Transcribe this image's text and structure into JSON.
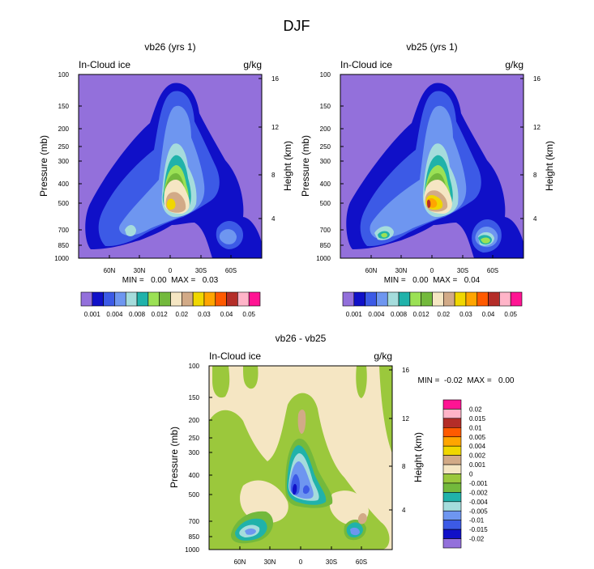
{
  "figure": {
    "season_title": "DJF"
  },
  "chart_data": [
    {
      "type": "contour",
      "title": "vb26 (yrs 1)",
      "field_label": "In-Cloud ice",
      "units": "g/kg",
      "xlabel": "",
      "ylabel": "Pressure (mb)",
      "y2label": "Height (km)",
      "x_ticks": [
        "60N",
        "30N",
        "0",
        "30S",
        "60S"
      ],
      "y_ticks": [
        100,
        150,
        200,
        250,
        300,
        400,
        500,
        700,
        850,
        1000
      ],
      "y2_ticks": [
        16,
        12,
        8,
        4
      ],
      "stats": "MIN =   0.00  MAX =   0.03",
      "colorbar": {
        "orientation": "horizontal",
        "levels": [
          "0.001",
          "0.004",
          "0.008",
          "0.012",
          "0.02",
          "0.03",
          "0.04",
          "0.05"
        ],
        "colors": [
          "#9370db",
          "#1010c8",
          "#3c5ae6",
          "#6e96f0",
          "#a5dcdc",
          "#20b2aa",
          "#9be155",
          "#73b93c",
          "#f5e6c3",
          "#d2aa87",
          "#f0d700",
          "#ffa500",
          "#ff5a00",
          "#b42d28",
          "#ffb4c8",
          "#ff1493"
        ]
      },
      "peak_value": 0.03
    },
    {
      "type": "contour",
      "title": "vb25 (yrs 1)",
      "field_label": "In-Cloud ice",
      "units": "g/kg",
      "xlabel": "",
      "ylabel": "Pressure (mb)",
      "y2label": "Height (km)",
      "x_ticks": [
        "60N",
        "30N",
        "0",
        "30S",
        "60S"
      ],
      "y_ticks": [
        100,
        150,
        200,
        250,
        300,
        400,
        500,
        700,
        850,
        1000
      ],
      "y2_ticks": [
        16,
        12,
        8,
        4
      ],
      "stats": "MIN =   0.00  MAX =   0.04",
      "colorbar": {
        "orientation": "horizontal",
        "levels": [
          "0.001",
          "0.004",
          "0.008",
          "0.012",
          "0.02",
          "0.03",
          "0.04",
          "0.05"
        ],
        "colors": [
          "#9370db",
          "#1010c8",
          "#3c5ae6",
          "#6e96f0",
          "#a5dcdc",
          "#20b2aa",
          "#9be155",
          "#73b93c",
          "#f5e6c3",
          "#d2aa87",
          "#f0d700",
          "#ffa500",
          "#ff5a00",
          "#b42d28",
          "#ffb4c8",
          "#ff1493"
        ]
      },
      "peak_value": 0.04
    },
    {
      "type": "contour",
      "title": "vb26 - vb25",
      "field_label": "In-Cloud ice",
      "units": "g/kg",
      "xlabel": "",
      "ylabel": "Pressure (mb)",
      "y2label": "Height (km)",
      "x_ticks": [
        "60N",
        "30N",
        "0",
        "30S",
        "60S"
      ],
      "y_ticks": [
        100,
        150,
        200,
        250,
        300,
        400,
        500,
        700,
        850,
        1000
      ],
      "y2_ticks": [
        16,
        12,
        8,
        4
      ],
      "stats": "MIN =  -0.02  MAX =   0.00",
      "colorbar": {
        "orientation": "vertical",
        "levels": [
          "0.02",
          "0.015",
          "0.01",
          "0.005",
          "0.004",
          "0.002",
          "0.001",
          "0",
          "-0.001",
          "-0.002",
          "-0.004",
          "-0.005",
          "-0.01",
          "-0.015",
          "-0.02"
        ],
        "colors": [
          "#ff1493",
          "#ffb4c8",
          "#b42d28",
          "#ff5a00",
          "#ffa500",
          "#f0d700",
          "#d2aa87",
          "#f5e6c3",
          "#9bc83c",
          "#73b93c",
          "#20b2aa",
          "#a5dcdc",
          "#6e96f0",
          "#3c5ae6",
          "#1010c8",
          "#9370db"
        ]
      }
    }
  ]
}
